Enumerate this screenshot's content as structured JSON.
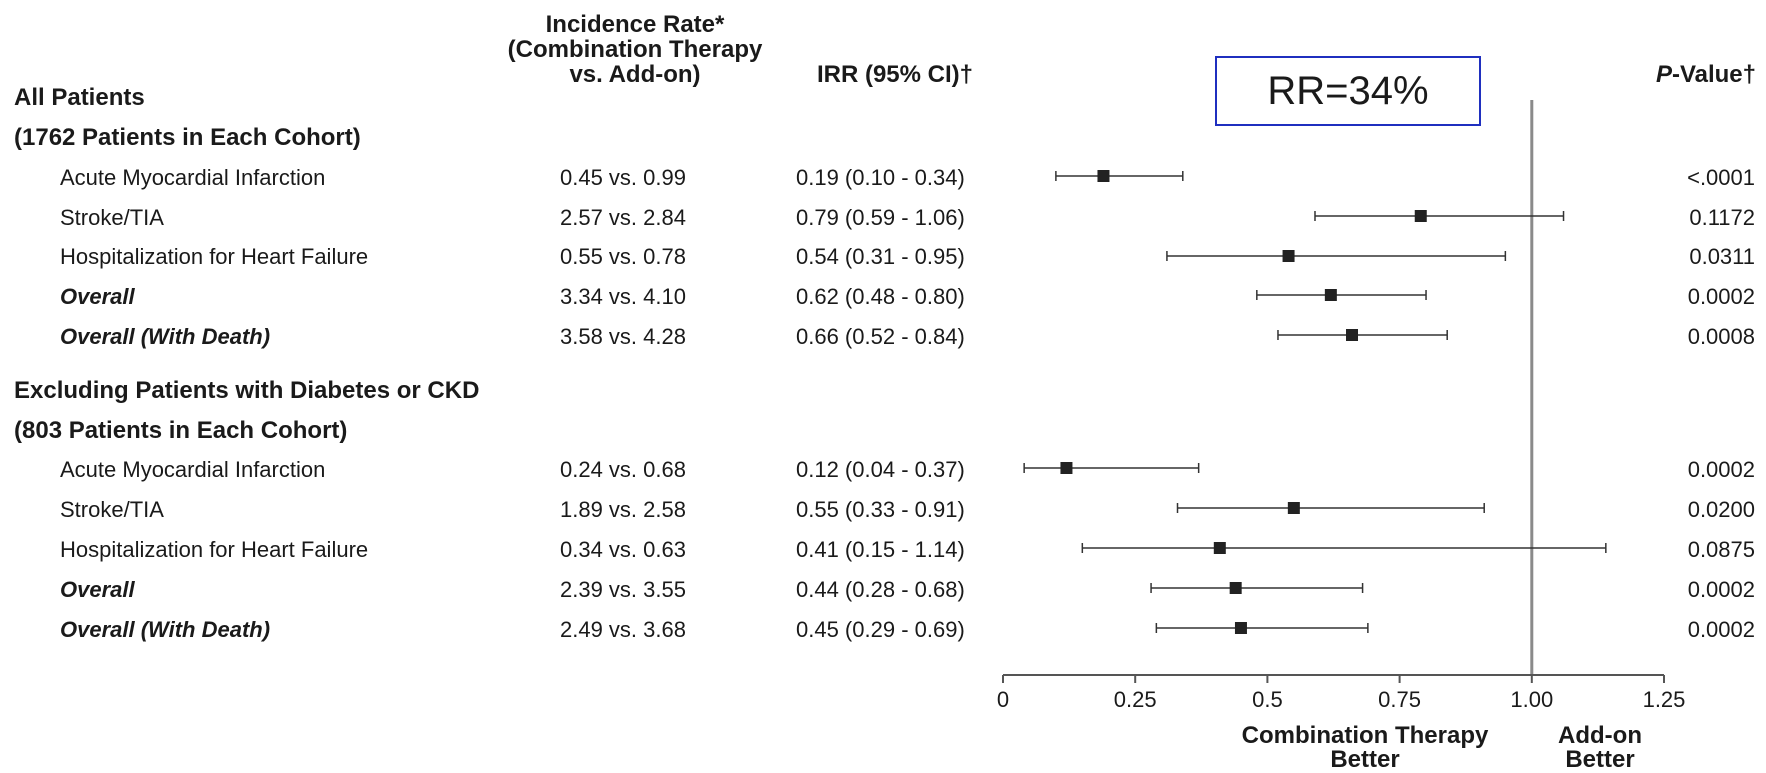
{
  "headers": {
    "incidence": [
      "Incidence Rate*",
      "(Combination Therapy",
      "vs. Add-on)"
    ],
    "irr": "IRR (95% CI)†",
    "p_italic": "P",
    "p_rest": "-Value†"
  },
  "annotation": "RR=34%",
  "sections": [
    {
      "title": "All Patients",
      "subtitle": "(1762 Patients in Each Cohort)"
    },
    {
      "title": "Excluding Patients with Diabetes or CKD",
      "subtitle": "(803 Patients in Each Cohort)"
    }
  ],
  "rows": [
    {
      "label": "Acute Myocardial Infarction",
      "style": "normal",
      "rate": "0.45 vs. 0.99",
      "irr": "0.19 (0.10 - 0.34)",
      "p": "<.0001",
      "est": 0.19,
      "lo": 0.1,
      "hi": 0.34
    },
    {
      "label": "Stroke/TIA",
      "style": "normal",
      "rate": "2.57 vs. 2.84",
      "irr": "0.79 (0.59 - 1.06)",
      "p": "0.1172",
      "est": 0.79,
      "lo": 0.59,
      "hi": 1.06
    },
    {
      "label": "Hospitalization for Heart Failure",
      "style": "normal",
      "rate": "0.55 vs. 0.78",
      "irr": "0.54 (0.31 - 0.95)",
      "p": "0.0311",
      "est": 0.54,
      "lo": 0.31,
      "hi": 0.95
    },
    {
      "label": "Overall",
      "style": "bold-italic",
      "rate": "3.34 vs. 4.10",
      "irr": "0.62 (0.48 - 0.80)",
      "p": "0.0002",
      "est": 0.62,
      "lo": 0.48,
      "hi": 0.8
    },
    {
      "label": "Overall (With Death)",
      "style": "bold-italic",
      "rate": "3.58 vs. 4.28",
      "irr": "0.66 (0.52 - 0.84)",
      "p": "0.0008",
      "est": 0.66,
      "lo": 0.52,
      "hi": 0.84
    },
    {
      "label": "Acute Myocardial Infarction",
      "style": "normal",
      "rate": "0.24 vs. 0.68",
      "irr": "0.12 (0.04 - 0.37)",
      "p": "0.0002",
      "est": 0.12,
      "lo": 0.04,
      "hi": 0.37
    },
    {
      "label": "Stroke/TIA",
      "style": "normal",
      "rate": "1.89 vs. 2.58",
      "irr": "0.55 (0.33 - 0.91)",
      "p": "0.0200",
      "est": 0.55,
      "lo": 0.33,
      "hi": 0.91
    },
    {
      "label": "Hospitalization for Heart Failure",
      "style": "normal",
      "rate": "0.34 vs. 0.63",
      "irr": "0.41 (0.15 - 1.14)",
      "p": "0.0875",
      "est": 0.41,
      "lo": 0.15,
      "hi": 1.14
    },
    {
      "label": "Overall",
      "style": "bold-italic",
      "rate": "2.39 vs. 3.55",
      "irr": "0.44 (0.28 - 0.68)",
      "p": "0.0002",
      "est": 0.44,
      "lo": 0.28,
      "hi": 0.68
    },
    {
      "label": "Overall (With Death)",
      "style": "bold-italic",
      "rate": "2.49 vs. 3.68",
      "irr": "0.45 (0.29 - 0.69)",
      "p": "0.0002",
      "est": 0.45,
      "lo": 0.29,
      "hi": 0.69
    }
  ],
  "chart_data": {
    "type": "forest",
    "xlim": [
      0,
      1.25
    ],
    "reference_line": 1.0,
    "ticks": [
      {
        "value": 0,
        "label": "0"
      },
      {
        "value": 0.25,
        "label": "0.25"
      },
      {
        "value": 0.5,
        "label": "0.5"
      },
      {
        "value": 0.75,
        "label": "0.75"
      },
      {
        "value": 1.0,
        "label": "1.00"
      },
      {
        "value": 1.25,
        "label": "1.25"
      }
    ],
    "favors_left": [
      "Combination Therapy",
      "Better"
    ],
    "favors_right": [
      "Add-on",
      "Better"
    ],
    "series": [
      {
        "values": [
          {
            "est": 0.19,
            "lo": 0.1,
            "hi": 0.34
          },
          {
            "est": 0.79,
            "lo": 0.59,
            "hi": 1.06
          },
          {
            "est": 0.54,
            "lo": 0.31,
            "hi": 0.95
          },
          {
            "est": 0.62,
            "lo": 0.48,
            "hi": 0.8
          },
          {
            "est": 0.66,
            "lo": 0.52,
            "hi": 0.84
          },
          {
            "est": 0.12,
            "lo": 0.04,
            "hi": 0.37
          },
          {
            "est": 0.55,
            "lo": 0.33,
            "hi": 0.91
          },
          {
            "est": 0.41,
            "lo": 0.15,
            "hi": 1.14
          },
          {
            "est": 0.44,
            "lo": 0.28,
            "hi": 0.68
          },
          {
            "est": 0.45,
            "lo": 0.29,
            "hi": 0.69
          }
        ]
      }
    ]
  }
}
